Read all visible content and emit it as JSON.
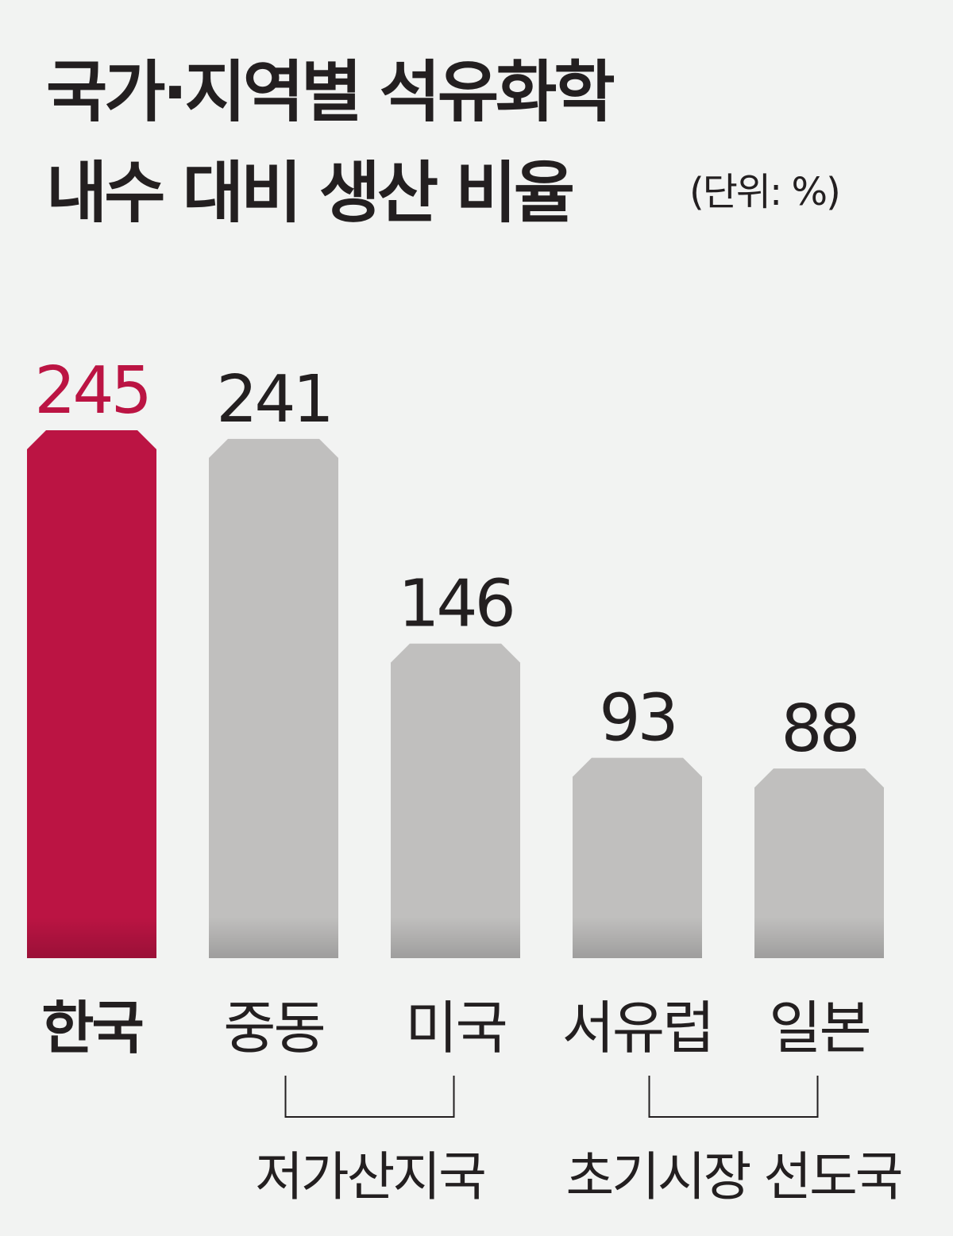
{
  "chart_data": {
    "type": "bar",
    "title_lines": [
      "국가·지역별 석유화학",
      "내수 대비 생산 비율"
    ],
    "unit": "(단위: %)",
    "categories": [
      "한국",
      "중동",
      "미국",
      "서유럽",
      "일본"
    ],
    "values": [
      245,
      241,
      146,
      93,
      88
    ],
    "colors": [
      "#bb1443",
      "#c0bfbe",
      "#c0bfbe",
      "#c0bfbe",
      "#c0bfbe"
    ],
    "label_colors": [
      "#bb1443",
      "#231f20",
      "#231f20",
      "#231f20",
      "#231f20"
    ],
    "bold_categories": [
      true,
      false,
      false,
      false,
      false
    ],
    "groups": [
      {
        "label": "저가산지국",
        "members": [
          "중동",
          "미국"
        ]
      },
      {
        "label": "초기시장 선도국",
        "members": [
          "서유럽",
          "일본"
        ]
      }
    ]
  }
}
